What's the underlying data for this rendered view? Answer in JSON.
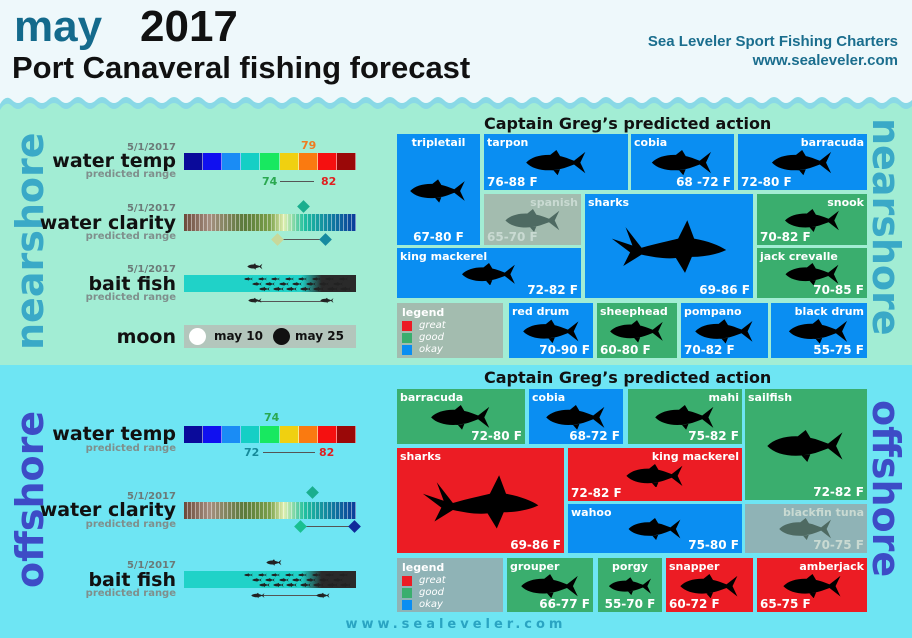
{
  "header": {
    "month": "may",
    "year": "2017",
    "subtitle": "Port Canaveral fishing forecast",
    "brand_name": "Sea Leveler Sport Fishing Charters",
    "brand_url": "www.sealeveler.com"
  },
  "colors": {
    "great": "#ec1c24",
    "good": "#3aae6e",
    "okay": "#0a8ef2",
    "off": "#a3bcaf",
    "off_offshore": "#8fb3b6",
    "temp_scale": [
      "#0a0a9a",
      "#1010f0",
      "#1a8cf5",
      "#15cfc5",
      "#18e860",
      "#f0d010",
      "#fa7a10",
      "#f51010",
      "#9a0808"
    ]
  },
  "nearshore": {
    "label": "nearshore",
    "conditions": {
      "water_temp": {
        "date": "5/1/2017",
        "label": "water temp",
        "sub": "predicted range",
        "current": "79",
        "low": "74",
        "high": "82"
      },
      "water_clarity": {
        "date": "5/1/2017",
        "label": "water clarity",
        "sub": "predicted range"
      },
      "bait_fish": {
        "date": "5/1/2017",
        "label": "bait fish",
        "sub": "predicted range"
      },
      "moon": {
        "label": "moon",
        "full": "may 10",
        "new": "may 25"
      }
    },
    "action_title": "Captain Greg’s predicted action",
    "legend": {
      "title": "legend",
      "great": "great",
      "good": "good",
      "okay": "okay"
    },
    "tiles": [
      {
        "name": "tripletail",
        "temp": "67-80 F",
        "rating": "okay"
      },
      {
        "name": "tarpon",
        "temp": "76-88 F",
        "rating": "okay"
      },
      {
        "name": "cobia",
        "temp": "68 -72 F",
        "rating": "okay"
      },
      {
        "name": "barracuda",
        "temp": "72-80 F",
        "rating": "okay"
      },
      {
        "name": "spanish",
        "temp": "65-70 F",
        "rating": "off"
      },
      {
        "name": "sharks",
        "temp": "69-86 F",
        "rating": "okay"
      },
      {
        "name": "snook",
        "temp": "70-82 F",
        "rating": "good"
      },
      {
        "name": "king mackerel",
        "temp": "72-82 F",
        "rating": "okay"
      },
      {
        "name": "jack crevalle",
        "temp": "70-85 F",
        "rating": "good"
      },
      {
        "name": "red drum",
        "temp": "70-90 F",
        "rating": "okay"
      },
      {
        "name": "sheephead",
        "temp": "60-80 F",
        "rating": "good"
      },
      {
        "name": "pompano",
        "temp": "70-82 F",
        "rating": "okay"
      },
      {
        "name": "black drum",
        "temp": "55-75 F",
        "rating": "okay"
      }
    ]
  },
  "offshore": {
    "label": "offshore",
    "conditions": {
      "water_temp": {
        "label": "water temp",
        "sub": "predicted range",
        "current": "74",
        "low": "72",
        "high": "82"
      },
      "water_clarity": {
        "date": "5/1/2017",
        "label": "water clarity",
        "sub": "predicted range"
      },
      "bait_fish": {
        "date": "5/1/2017",
        "label": "bait fish",
        "sub": "predicted range"
      }
    },
    "action_title": "Captain Greg’s predicted action",
    "legend": {
      "title": "legend",
      "great": "great",
      "good": "good",
      "okay": "okay"
    },
    "tiles": [
      {
        "name": "barracuda",
        "temp": "72-80 F",
        "rating": "good"
      },
      {
        "name": "cobia",
        "temp": "68-72 F",
        "rating": "okay"
      },
      {
        "name": "mahi",
        "temp": "75-82 F",
        "rating": "good"
      },
      {
        "name": "sailfish",
        "temp": "72-82 F",
        "rating": "good"
      },
      {
        "name": "sharks",
        "temp": "69-86 F",
        "rating": "great"
      },
      {
        "name": "king mackerel",
        "temp": "72-82 F",
        "rating": "great"
      },
      {
        "name": "wahoo",
        "temp": "75-80 F",
        "rating": "okay"
      },
      {
        "name": "blackfin tuna",
        "temp": "70-75 F",
        "rating": "off"
      },
      {
        "name": "grouper",
        "temp": "66-77 F",
        "rating": "good"
      },
      {
        "name": "porgy",
        "temp": "55-70 F",
        "rating": "good"
      },
      {
        "name": "snapper",
        "temp": "60-72 F",
        "rating": "great"
      },
      {
        "name": "amberjack",
        "temp": "65-75 F",
        "rating": "great"
      }
    ]
  },
  "footer": {
    "url": "www.sealeveler.com"
  }
}
